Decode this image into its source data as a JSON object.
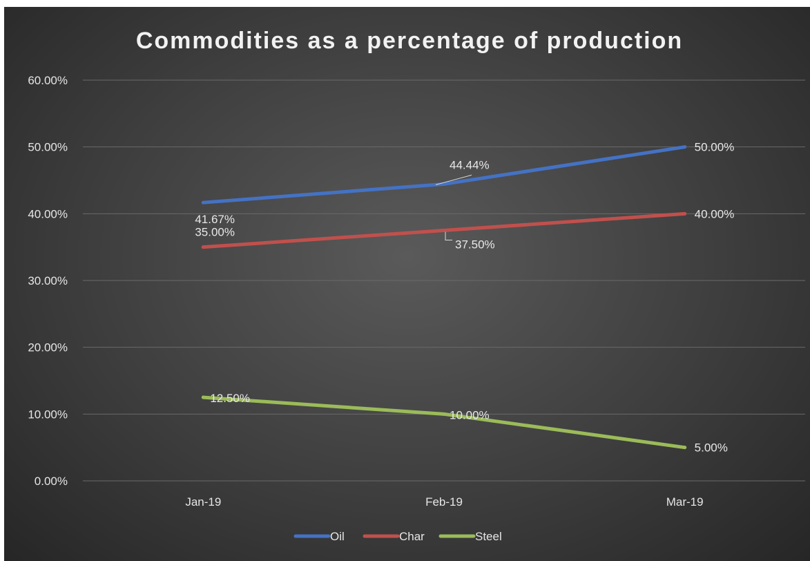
{
  "chart_data": {
    "type": "line",
    "title": "Commodities as a percentage of production",
    "categories": [
      "Jan-19",
      "Feb-19",
      "Mar-19"
    ],
    "ylim": [
      0,
      60
    ],
    "yticks": [
      0,
      10,
      20,
      30,
      40,
      50,
      60
    ],
    "ytick_labels": [
      "0.00%",
      "10.00%",
      "20.00%",
      "30.00%",
      "40.00%",
      "50.00%",
      "60.00%"
    ],
    "grid": true,
    "legend_position": "bottom",
    "series": [
      {
        "name": "Oil",
        "color": "#4472c4",
        "values": [
          41.67,
          44.44,
          50.0
        ],
        "labels": [
          "41.67%",
          "44.44%",
          "50.00%"
        ]
      },
      {
        "name": "Char",
        "color": "#c0504d",
        "values": [
          35.0,
          37.5,
          40.0
        ],
        "labels": [
          "35.00%",
          "37.50%",
          "40.00%"
        ]
      },
      {
        "name": "Steel",
        "color": "#9bbb59",
        "values": [
          12.5,
          10.0,
          5.0
        ],
        "labels": [
          "12.50%",
          "10.00%",
          "5.00%"
        ]
      }
    ]
  }
}
